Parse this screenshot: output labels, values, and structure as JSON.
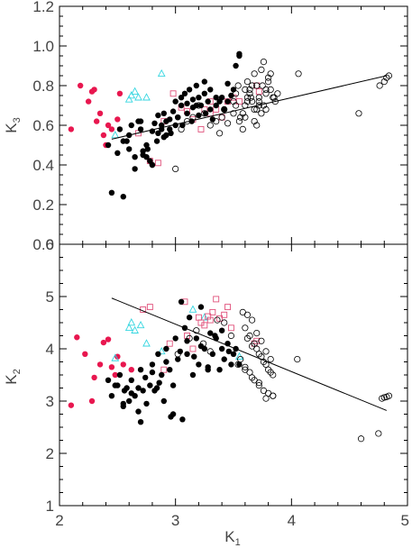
{
  "chart_data": [
    {
      "type": "scatter",
      "title": "",
      "xlabel": "",
      "ylabel": "K3",
      "ylabel_main": "K",
      "ylabel_sub": "3",
      "xlim": [
        2,
        5
      ],
      "ylim": [
        0,
        1.2
      ],
      "xticks": [
        2,
        3,
        4,
        5
      ],
      "yticks": [
        0.0,
        0.2,
        0.4,
        0.6,
        0.8,
        1.0,
        1.2
      ],
      "ytick_labels": [
        "0.0",
        "0.2",
        "0.4",
        "0.6",
        "0.8",
        "1.0",
        "1.2"
      ],
      "fit_line": {
        "x": [
          2.45,
          4.82
        ],
        "y": [
          0.53,
          0.85
        ]
      },
      "series": [
        {
          "marker": "filled-circle",
          "color": "#e8174f",
          "x": [
            2.1,
            2.18,
            2.28,
            2.3,
            2.25,
            2.32,
            2.38,
            2.4,
            2.45,
            2.5,
            2.52,
            2.35,
            2.42
          ],
          "y": [
            0.58,
            0.8,
            0.77,
            0.78,
            0.72,
            0.62,
            0.55,
            0.5,
            0.58,
            0.63,
            0.76,
            0.66,
            0.6
          ]
        },
        {
          "marker": "open-triangle",
          "color": "#35d6e0",
          "x": [
            2.48,
            2.6,
            2.62,
            2.65,
            2.68,
            2.75,
            2.88
          ],
          "y": [
            0.55,
            0.73,
            0.75,
            0.77,
            0.74,
            0.74,
            0.86
          ]
        },
        {
          "marker": "open-square",
          "color": "#e0507a",
          "x": [
            2.68,
            2.78,
            2.85,
            2.9,
            2.98,
            3.05,
            3.1,
            3.15,
            3.22,
            3.25,
            3.3,
            3.3,
            3.35,
            3.4,
            3.45,
            3.5,
            3.55,
            3.7,
            3.72
          ],
          "y": [
            0.56,
            0.42,
            0.41,
            0.62,
            0.76,
            0.69,
            0.67,
            0.63,
            0.58,
            0.68,
            0.72,
            0.66,
            0.68,
            0.64,
            0.72,
            0.74,
            0.72,
            0.8,
            0.77
          ]
        },
        {
          "marker": "filled-circle",
          "color": "#000000",
          "x": [
            2.45,
            2.55,
            2.5,
            2.55,
            2.6,
            2.6,
            2.65,
            2.65,
            2.7,
            2.7,
            2.72,
            2.75,
            2.75,
            2.78,
            2.8,
            2.8,
            2.82,
            2.85,
            2.85,
            2.88,
            2.9,
            2.9,
            2.92,
            2.95,
            2.95,
            2.98,
            3.0,
            3.0,
            3.02,
            3.05,
            3.05,
            3.08,
            3.1,
            3.1,
            3.12,
            3.15,
            3.15,
            3.18,
            3.2,
            3.2,
            3.22,
            3.25,
            3.25,
            3.28,
            3.3,
            3.3,
            3.32,
            3.35,
            3.35,
            3.38,
            3.4,
            3.42,
            3.45,
            3.45,
            3.48,
            3.5,
            3.52,
            3.55,
            3.55,
            2.42,
            2.52,
            2.58,
            2.62,
            2.68,
            2.72,
            2.76,
            2.8,
            2.84,
            2.88,
            2.92,
            2.96,
            3.02,
            3.06,
            3.14,
            3.18,
            3.26
          ],
          "y": [
            0.26,
            0.24,
            0.46,
            0.52,
            0.48,
            0.55,
            0.44,
            0.38,
            0.58,
            0.62,
            0.47,
            0.5,
            0.44,
            0.42,
            0.4,
            0.57,
            0.61,
            0.65,
            0.56,
            0.6,
            0.66,
            0.54,
            0.55,
            0.58,
            0.63,
            0.67,
            0.72,
            0.6,
            0.64,
            0.7,
            0.74,
            0.76,
            0.66,
            0.71,
            0.78,
            0.73,
            0.69,
            0.8,
            0.74,
            0.65,
            0.7,
            0.82,
            0.76,
            0.72,
            0.68,
            0.78,
            0.63,
            0.74,
            0.7,
            0.72,
            0.74,
            0.68,
            0.72,
            0.81,
            0.75,
            0.78,
            0.9,
            0.96,
            0.95,
            0.5,
            0.58,
            0.52,
            0.6,
            0.62,
            0.45,
            0.48,
            0.4,
            0.52,
            0.58,
            0.62,
            0.56,
            0.64,
            0.6,
            0.62,
            0.7,
            0.66
          ]
        },
        {
          "marker": "open-circle",
          "color": "#000000",
          "x": [
            3.0,
            3.05,
            3.1,
            3.15,
            3.2,
            3.25,
            3.3,
            3.35,
            3.38,
            3.4,
            3.42,
            3.45,
            3.5,
            3.52,
            3.55,
            3.58,
            3.6,
            3.62,
            3.65,
            3.68,
            3.7,
            3.72,
            3.75,
            3.78,
            3.8,
            3.82,
            3.85,
            3.88,
            3.6,
            3.62,
            3.64,
            3.66,
            3.68,
            3.7,
            3.72,
            3.74,
            3.76,
            3.78,
            3.5,
            3.52,
            3.54,
            3.56,
            3.58,
            3.6,
            3.62,
            3.64,
            3.66,
            3.68,
            3.7,
            3.72,
            3.74,
            3.76,
            3.78,
            3.8,
            3.82,
            3.84,
            3.86,
            4.06,
            4.58,
            4.76,
            4.8,
            4.82,
            4.84
          ],
          "y": [
            0.38,
            0.58,
            0.62,
            0.64,
            0.7,
            0.66,
            0.6,
            0.62,
            0.56,
            0.64,
            0.68,
            0.61,
            0.66,
            0.7,
            0.62,
            0.58,
            0.64,
            0.72,
            0.74,
            0.68,
            0.6,
            0.7,
            0.8,
            0.78,
            0.84,
            0.86,
            0.74,
            0.76,
            0.78,
            0.82,
            0.76,
            0.72,
            0.86,
            0.8,
            0.74,
            0.88,
            0.92,
            0.68,
            0.72,
            0.76,
            0.8,
            0.64,
            0.66,
            0.7,
            0.74,
            0.78,
            0.8,
            0.62,
            0.68,
            0.72,
            0.66,
            0.7,
            0.76,
            0.82,
            0.78,
            0.74,
            0.72,
            0.86,
            0.66,
            0.8,
            0.82,
            0.84,
            0.85
          ]
        }
      ]
    },
    {
      "type": "scatter",
      "title": "",
      "xlabel": "K1",
      "xlabel_main": "K",
      "xlabel_sub": "1",
      "ylabel": "K2",
      "ylabel_main": "K",
      "ylabel_sub": "2",
      "xlim": [
        2,
        5
      ],
      "ylim": [
        1,
        6
      ],
      "xticks": [
        2,
        3,
        4,
        5
      ],
      "xtick_labels": [
        "2",
        "3",
        "4",
        "5"
      ],
      "yticks": [
        1,
        2,
        3,
        4,
        5,
        6
      ],
      "ytick_labels": [
        "1",
        "2",
        "3",
        "4",
        "5",
        "6"
      ],
      "fit_line": {
        "x": [
          2.45,
          4.82
        ],
        "y": [
          4.97,
          2.82
        ]
      },
      "series": [
        {
          "marker": "filled-circle",
          "color": "#e8174f",
          "x": [
            2.1,
            2.15,
            2.22,
            2.28,
            2.3,
            2.35,
            2.38,
            2.42,
            2.45,
            2.48,
            2.5,
            2.55,
            2.62
          ],
          "y": [
            2.92,
            4.22,
            3.9,
            3.0,
            3.45,
            3.7,
            4.12,
            4.18,
            3.65,
            3.5,
            3.85,
            3.7,
            3.6
          ]
        },
        {
          "marker": "open-triangle",
          "color": "#35d6e0",
          "x": [
            2.48,
            2.6,
            2.62,
            2.65,
            2.7,
            2.75,
            2.88,
            3.15,
            3.25,
            3.55
          ],
          "y": [
            3.82,
            4.4,
            4.5,
            4.35,
            4.45,
            4.1,
            3.95,
            4.75,
            4.6,
            3.85
          ]
        },
        {
          "marker": "open-square",
          "color": "#e0507a",
          "x": [
            2.72,
            2.78,
            2.9,
            2.95,
            3.08,
            3.1,
            3.15,
            3.2,
            3.22,
            3.25,
            3.28,
            3.3,
            3.32,
            3.35,
            3.38,
            3.42,
            3.45,
            3.48,
            3.68,
            3.7
          ],
          "y": [
            4.75,
            4.8,
            3.6,
            4.1,
            4.9,
            4.25,
            4.0,
            4.6,
            4.5,
            4.45,
            4.62,
            4.55,
            4.7,
            4.95,
            4.58,
            4.65,
            4.8,
            4.4,
            4.1,
            4.15
          ]
        },
        {
          "marker": "filled-circle",
          "color": "#000000",
          "x": [
            2.42,
            2.45,
            2.5,
            2.52,
            2.55,
            2.58,
            2.6,
            2.62,
            2.65,
            2.68,
            2.7,
            2.72,
            2.75,
            2.78,
            2.8,
            2.82,
            2.85,
            2.88,
            2.9,
            2.92,
            2.95,
            2.98,
            3.0,
            3.02,
            3.05,
            3.08,
            3.1,
            3.12,
            3.15,
            3.18,
            3.2,
            3.22,
            3.25,
            3.28,
            3.3,
            3.32,
            3.35,
            3.38,
            3.4,
            3.42,
            3.45,
            3.48,
            3.5,
            3.52,
            3.55,
            2.48,
            2.55,
            2.62,
            2.68,
            2.74,
            2.8,
            2.86,
            2.92,
            2.98,
            3.04,
            3.1,
            3.16,
            3.22,
            3.28,
            3.34,
            3.4,
            3.46,
            2.56,
            2.7,
            2.84,
            2.96,
            3.06
          ],
          "y": [
            3.4,
            3.1,
            3.3,
            3.5,
            2.9,
            3.25,
            3.0,
            3.4,
            3.1,
            2.8,
            3.6,
            3.2,
            2.95,
            3.3,
            3.7,
            3.2,
            3.9,
            3.5,
            3.0,
            4.0,
            3.6,
            3.3,
            4.2,
            3.8,
            4.9,
            4.4,
            3.9,
            4.6,
            3.5,
            4.2,
            3.7,
            4.8,
            4.0,
            3.6,
            4.3,
            3.9,
            4.2,
            3.6,
            4.0,
            3.8,
            4.1,
            3.7,
            3.9,
            4.0,
            3.7,
            3.3,
            2.95,
            3.15,
            3.25,
            3.45,
            3.55,
            3.35,
            3.75,
            2.75,
            3.95,
            4.15,
            3.85,
            4.05,
            3.65,
            4.25,
            4.35,
            3.95,
            3.2,
            2.6,
            3.25,
            2.7,
            2.65
          ]
        },
        {
          "marker": "open-circle",
          "color": "#000000",
          "x": [
            3.02,
            3.12,
            3.18,
            3.24,
            3.3,
            3.36,
            3.42,
            3.48,
            3.54,
            3.6,
            3.66,
            3.72,
            3.78,
            3.84,
            3.58,
            3.62,
            3.66,
            3.7,
            3.74,
            3.78,
            3.82,
            3.6,
            3.64,
            3.68,
            3.72,
            3.76,
            3.8,
            3.84,
            3.56,
            3.6,
            3.64,
            3.68,
            3.72,
            3.76,
            3.8,
            3.84,
            3.62,
            3.66,
            3.7,
            3.74,
            3.78,
            3.82,
            4.05,
            4.6,
            4.75,
            4.78,
            4.8,
            4.82,
            4.84
          ],
          "y": [
            3.9,
            4.2,
            4.35,
            4.1,
            3.95,
            4.55,
            4.5,
            4.25,
            3.7,
            3.6,
            3.45,
            3.35,
            3.05,
            3.1,
            4.7,
            4.65,
            4.55,
            4.3,
            4.15,
            3.95,
            3.8,
            4.4,
            4.25,
            4.1,
            3.9,
            3.75,
            3.6,
            3.5,
            3.8,
            3.65,
            3.55,
            3.4,
            3.3,
            3.2,
            3.15,
            3.1,
            4.2,
            4.05,
            4.0,
            3.85,
            3.7,
            3.55,
            3.8,
            2.28,
            2.38,
            3.05,
            3.07,
            3.08,
            3.1
          ]
        }
      ]
    }
  ]
}
